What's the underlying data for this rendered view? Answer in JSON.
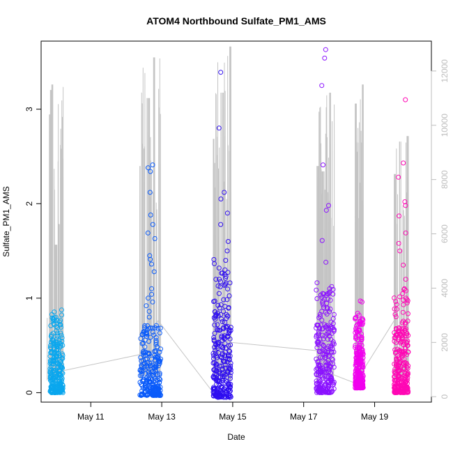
{
  "chart_data": {
    "type": "scatter",
    "title": "ATOM4 Northbound Sulfate_PM1_AMS",
    "xlabel": "Date",
    "ylabel": "Sulfate_PM1_AMS",
    "x_ticks": [
      "May 11",
      "May 13",
      "May 15",
      "May 17",
      "May 19"
    ],
    "x_tick_positions_days": [
      11,
      13,
      15,
      17,
      19
    ],
    "xlim_days": [
      9.6,
      20.6
    ],
    "ylim": [
      -0.1,
      3.72
    ],
    "y_ticks": [
      0,
      1,
      2,
      3
    ],
    "y2lim": [
      -200,
      13100
    ],
    "y2_ticks": [
      0,
      2000,
      4000,
      6000,
      8000,
      10000,
      12000
    ],
    "grid": false,
    "legend": "none",
    "axes_color": "#000000",
    "secondary_axis_color": "#bdbdbd",
    "line_color": "#c4c4c4",
    "series": [
      {
        "period": "May 9-10",
        "color": "#0aa7ee",
        "x_range_days": [
          9.85,
          10.22
        ],
        "y_base": [
          0.0,
          0.55
        ],
        "outliers_y": [
          0.72,
          0.63,
          0.6
        ],
        "bulk_mean": 0.12
      },
      {
        "period": "May 12-13",
        "color": "#0a5bfa",
        "x_range_days": [
          12.38,
          12.97
        ],
        "y_base": [
          -0.03,
          0.45
        ],
        "outliers_y": [
          2.41,
          2.38,
          2.34,
          2.12,
          1.88,
          1.78,
          1.69,
          1.63,
          1.45,
          1.41,
          1.36,
          1.28,
          1.1,
          1.04,
          1.0,
          0.96,
          0.92,
          0.86,
          0.8
        ],
        "bulk_mean": 0.08
      },
      {
        "period": "May 14-15",
        "color": "#2e0df0",
        "x_range_days": [
          14.45,
          14.95
        ],
        "y_base": [
          -0.05,
          0.9
        ],
        "outliers_y": [
          3.39,
          2.8,
          2.12,
          2.05,
          1.9,
          1.78,
          1.6,
          1.5,
          1.4,
          1.3,
          1.25,
          1.2,
          1.12,
          1.05
        ],
        "bulk_mean": 0.35
      },
      {
        "period": "May 17-18",
        "color": "#8b12ff",
        "x_range_days": [
          17.35,
          17.86
        ],
        "y_base": [
          0.0,
          0.75
        ],
        "outliers_y": [
          3.63,
          3.54,
          3.25,
          2.41,
          1.98,
          1.93,
          1.61,
          1.38,
          1.1,
          1.05,
          1.03,
          0.95,
          0.9,
          0.85
        ],
        "bulk_mean": 0.25
      },
      {
        "period": "May 18-19",
        "color": "#f100ee",
        "x_range_days": [
          18.45,
          18.68
        ],
        "y_base": [
          0.05,
          0.5
        ],
        "outliers_y": [
          0.97,
          0.96,
          0.84,
          0.82,
          0.62,
          0.58,
          0.56
        ],
        "bulk_mean": 0.22
      },
      {
        "period": "May 19-20",
        "color": "#ff07b4",
        "x_range_days": [
          19.55,
          19.95
        ],
        "y_base": [
          0.0,
          0.7
        ],
        "outliers_y": [
          3.1,
          2.43,
          2.28,
          2.02,
          1.98,
          1.87,
          1.69,
          1.58,
          1.5,
          1.35,
          1.2,
          1.1,
          1.0,
          0.85
        ],
        "bulk_mean": 0.22
      }
    ],
    "secondary_line": {
      "description_values": "grey line on right axis (0-12000)",
      "peaks": [
        {
          "x": 9.77,
          "y": 2900
        },
        {
          "x": 9.83,
          "y": 10400
        },
        {
          "x": 9.86,
          "y": 11300
        },
        {
          "x": 9.9,
          "y": 11500
        },
        {
          "x": 10.02,
          "y": 5600
        },
        {
          "x": 12.39,
          "y": 8500
        },
        {
          "x": 12.62,
          "y": 11000
        },
        {
          "x": 12.8,
          "y": 12500
        },
        {
          "x": 14.45,
          "y": 9500
        },
        {
          "x": 14.7,
          "y": 11200
        },
        {
          "x": 14.95,
          "y": 12900
        },
        {
          "x": 17.38,
          "y": 8500
        },
        {
          "x": 17.55,
          "y": 8300
        },
        {
          "x": 17.75,
          "y": 11200
        },
        {
          "x": 18.45,
          "y": 10800
        },
        {
          "x": 18.68,
          "y": 11500
        },
        {
          "x": 19.55,
          "y": 8200
        },
        {
          "x": 19.7,
          "y": 9400
        },
        {
          "x": 19.95,
          "y": 9600
        }
      ],
      "connectors": [
        {
          "x": 10.0,
          "y": 900
        },
        {
          "x": 12.38,
          "y": 1550
        },
        {
          "x": 12.9,
          "y": 2800
        },
        {
          "x": 14.45,
          "y": 150
        },
        {
          "x": 14.95,
          "y": 2000
        },
        {
          "x": 17.35,
          "y": 1700
        },
        {
          "x": 17.86,
          "y": 800
        },
        {
          "x": 18.45,
          "y": 500
        },
        {
          "x": 19.55,
          "y": 2800
        }
      ]
    }
  }
}
